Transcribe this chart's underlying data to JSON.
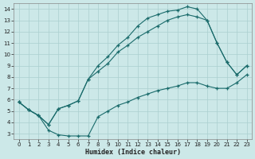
{
  "xlabel": "Humidex (Indice chaleur)",
  "xlim": [
    -0.5,
    23.5
  ],
  "ylim": [
    2.5,
    14.5
  ],
  "xticks": [
    0,
    1,
    2,
    3,
    4,
    5,
    6,
    7,
    8,
    9,
    10,
    11,
    12,
    13,
    14,
    15,
    16,
    17,
    18,
    19,
    20,
    21,
    22,
    23
  ],
  "yticks": [
    3,
    4,
    5,
    6,
    7,
    8,
    9,
    10,
    11,
    12,
    13,
    14
  ],
  "bg_color": "#cce8e8",
  "line_color": "#1a6b6b",
  "grid_color": "#aacfcf",
  "curves": {
    "upper": {
      "x": [
        0,
        1,
        2,
        3,
        4,
        5,
        6,
        7,
        8,
        9,
        10,
        11,
        12,
        13,
        14,
        15,
        16,
        17,
        18,
        19,
        20,
        21,
        22,
        23
      ],
      "y": [
        5.8,
        5.1,
        4.6,
        3.8,
        5.2,
        5.5,
        5.9,
        7.8,
        9.0,
        9.8,
        10.8,
        11.5,
        12.5,
        13.2,
        13.5,
        13.8,
        13.9,
        14.2,
        14.0,
        13.0,
        11.0,
        9.3,
        8.2,
        9.0
      ]
    },
    "middle": {
      "x": [
        0,
        1,
        2,
        3,
        4,
        5,
        6,
        7,
        8,
        9,
        10,
        11,
        12,
        13,
        14,
        15,
        16,
        17,
        18,
        19,
        20,
        21,
        22,
        23
      ],
      "y": [
        5.8,
        5.1,
        4.6,
        3.8,
        5.2,
        5.5,
        5.9,
        7.8,
        8.5,
        9.2,
        10.2,
        10.8,
        11.5,
        12.0,
        12.5,
        13.0,
        13.3,
        13.5,
        13.3,
        13.0,
        11.0,
        9.3,
        8.2,
        9.0
      ]
    },
    "lower": {
      "x": [
        0,
        1,
        2,
        3,
        4,
        5,
        6,
        7,
        8,
        9,
        10,
        11,
        12,
        13,
        14,
        15,
        16,
        17,
        18,
        19,
        20,
        21,
        22,
        23
      ],
      "y": [
        5.8,
        5.1,
        4.6,
        3.3,
        2.9,
        2.8,
        2.8,
        2.8,
        4.5,
        5.0,
        5.5,
        5.8,
        6.2,
        6.5,
        6.8,
        7.0,
        7.2,
        7.5,
        7.5,
        7.2,
        7.0,
        7.0,
        7.5,
        8.2
      ]
    }
  }
}
